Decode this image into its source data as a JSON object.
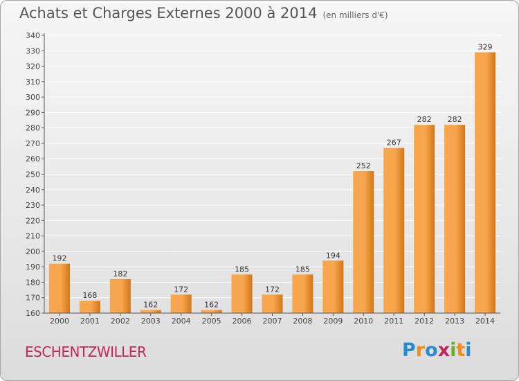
{
  "title": "Achats et Charges Externes 2000 à 2014",
  "subtitle": "(en milliers d'€)",
  "place": "ESCHENTZWILLER",
  "logo": {
    "letters": [
      "P",
      "r",
      "o",
      "x",
      "i",
      "t",
      "i"
    ],
    "colors": [
      "#2b8bd0",
      "#f08c1a",
      "#2b8bd0",
      "#c0285a",
      "#6ab023",
      "#f08c1a",
      "#2b8bd0"
    ]
  },
  "colors": {
    "bar_light": "#f7a64e",
    "bar_dark": "#d2761a",
    "axis": "#555555",
    "grid": "#ffffff"
  },
  "chart_data": {
    "type": "bar",
    "categories": [
      "2000",
      "2001",
      "2002",
      "2003",
      "2004",
      "2005",
      "2006",
      "2007",
      "2008",
      "2009",
      "2010",
      "2011",
      "2012",
      "2013",
      "2014"
    ],
    "values": [
      192,
      168,
      182,
      162,
      172,
      162,
      185,
      172,
      185,
      194,
      252,
      267,
      282,
      282,
      329
    ],
    "data_labels": [
      "192",
      "168",
      "182",
      "162",
      "172",
      "162",
      "185",
      "172",
      "185",
      "194",
      "252",
      "267",
      "282",
      "282",
      "329"
    ],
    "ylim": [
      160,
      340
    ],
    "yticks": [
      "160",
      "170",
      "180",
      "190",
      "200",
      "210",
      "220",
      "230",
      "240",
      "250",
      "260",
      "270",
      "280",
      "290",
      "300",
      "310",
      "320",
      "330",
      "340"
    ],
    "grid": true
  }
}
